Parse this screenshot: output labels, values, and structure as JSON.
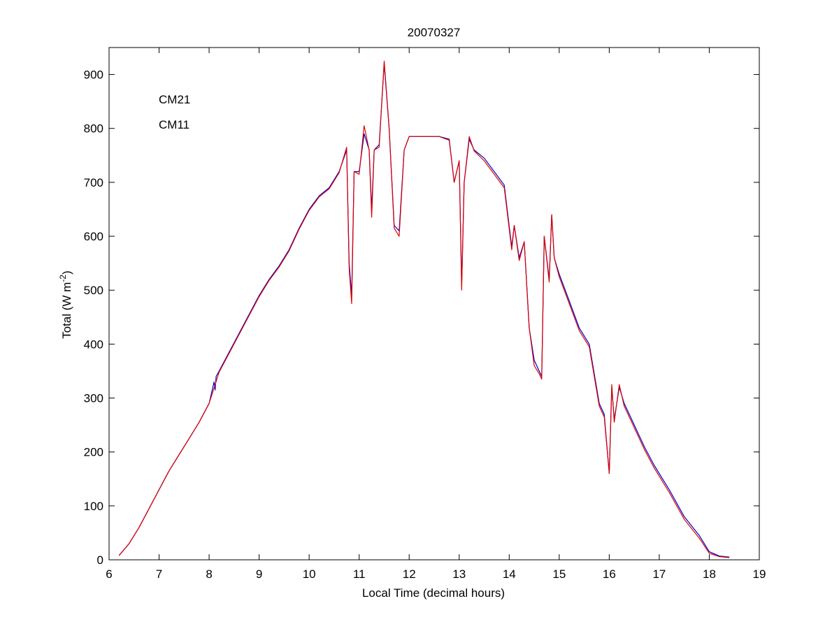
{
  "chart_data": {
    "type": "line",
    "title": "20070327",
    "xlabel": "Local Time (decimal hours)",
    "ylabel": {
      "prefix": "Total (W m",
      "sup": "-2",
      "suffix": ")"
    },
    "xlim": [
      6,
      19
    ],
    "ylim": [
      0,
      950
    ],
    "xticks": [
      6,
      7,
      8,
      9,
      10,
      11,
      12,
      13,
      14,
      15,
      16,
      17,
      18,
      19
    ],
    "yticks": [
      0,
      100,
      200,
      300,
      400,
      500,
      600,
      700,
      800,
      900
    ],
    "grid": false,
    "legend_placement": "top-left",
    "series": [
      {
        "name": "CM21",
        "color": "#0000cc",
        "x": [
          6.2,
          6.4,
          6.6,
          6.8,
          7.0,
          7.2,
          7.4,
          7.6,
          7.8,
          8.0,
          8.1,
          8.12,
          8.14,
          8.2,
          8.4,
          8.6,
          8.8,
          9.0,
          9.2,
          9.4,
          9.6,
          9.8,
          10.0,
          10.2,
          10.4,
          10.6,
          10.75,
          10.8,
          10.85,
          10.9,
          11.0,
          11.1,
          11.2,
          11.25,
          11.3,
          11.4,
          11.5,
          11.6,
          11.7,
          11.8,
          11.9,
          12.0,
          12.2,
          12.4,
          12.6,
          12.8,
          12.9,
          13.0,
          13.05,
          13.1,
          13.2,
          13.3,
          13.5,
          13.7,
          13.9,
          14.05,
          14.1,
          14.2,
          14.3,
          14.4,
          14.5,
          14.6,
          14.65,
          14.7,
          14.8,
          14.85,
          14.9,
          15.0,
          15.2,
          15.4,
          15.6,
          15.8,
          15.9,
          16.0,
          16.05,
          16.1,
          16.2,
          16.3,
          16.5,
          16.7,
          16.9,
          17.2,
          17.5,
          17.8,
          18.0,
          18.2,
          18.4
        ],
        "y": [
          8,
          30,
          60,
          95,
          130,
          165,
          195,
          225,
          255,
          290,
          330,
          315,
          340,
          350,
          385,
          420,
          455,
          490,
          520,
          545,
          575,
          615,
          650,
          675,
          690,
          720,
          760,
          550,
          490,
          720,
          720,
          790,
          760,
          650,
          760,
          770,
          920,
          800,
          620,
          610,
          760,
          785,
          785,
          785,
          785,
          780,
          700,
          740,
          510,
          700,
          780,
          760,
          745,
          720,
          695,
          580,
          620,
          560,
          590,
          430,
          370,
          350,
          340,
          600,
          520,
          640,
          560,
          530,
          480,
          430,
          400,
          290,
          270,
          160,
          320,
          260,
          320,
          290,
          250,
          210,
          175,
          130,
          80,
          45,
          15,
          7,
          5
        ]
      },
      {
        "name": "CM11",
        "color": "#dd0000",
        "x": [
          6.2,
          6.4,
          6.6,
          6.8,
          7.0,
          7.2,
          7.4,
          7.6,
          7.8,
          8.0,
          8.2,
          8.4,
          8.6,
          8.8,
          9.0,
          9.2,
          9.4,
          9.6,
          9.8,
          10.0,
          10.2,
          10.4,
          10.6,
          10.75,
          10.8,
          10.85,
          10.9,
          11.0,
          11.1,
          11.2,
          11.25,
          11.3,
          11.4,
          11.5,
          11.6,
          11.7,
          11.8,
          11.9,
          12.0,
          12.2,
          12.4,
          12.6,
          12.8,
          12.9,
          13.0,
          13.05,
          13.1,
          13.2,
          13.3,
          13.5,
          13.7,
          13.9,
          14.05,
          14.1,
          14.2,
          14.3,
          14.4,
          14.5,
          14.6,
          14.65,
          14.7,
          14.8,
          14.85,
          14.9,
          15.0,
          15.2,
          15.4,
          15.6,
          15.8,
          15.9,
          16.0,
          16.05,
          16.1,
          16.2,
          16.3,
          16.5,
          16.7,
          16.9,
          17.2,
          17.5,
          17.8,
          18.0,
          18.2,
          18.4
        ],
        "y": [
          8,
          30,
          60,
          95,
          130,
          165,
          195,
          225,
          255,
          290,
          348,
          383,
          418,
          453,
          488,
          518,
          543,
          573,
          613,
          648,
          673,
          688,
          718,
          765,
          540,
          475,
          720,
          715,
          805,
          760,
          635,
          760,
          765,
          925,
          800,
          615,
          600,
          760,
          785,
          785,
          785,
          785,
          778,
          700,
          740,
          500,
          700,
          785,
          758,
          740,
          715,
          690,
          575,
          620,
          555,
          590,
          430,
          360,
          345,
          335,
          600,
          515,
          640,
          560,
          525,
          475,
          425,
          395,
          285,
          265,
          160,
          325,
          255,
          325,
          285,
          245,
          205,
          170,
          125,
          75,
          40,
          12,
          6,
          4
        ]
      }
    ]
  }
}
